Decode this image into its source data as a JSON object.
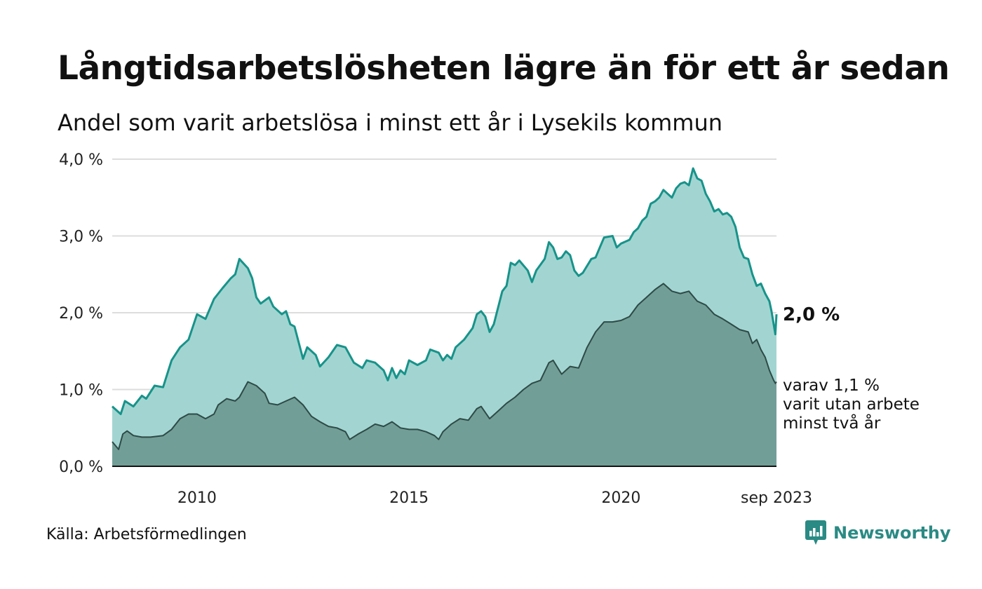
{
  "header": {
    "title": "Långtidsarbetslösheten lägre än för ett år sedan",
    "subtitle": "Andel som varit arbetslösa i minst ett år i Lysekils kommun"
  },
  "footer": {
    "source": "Källa: Arbetsförmedlingen",
    "brand": "Newsworthy"
  },
  "colors": {
    "main_line": "#17938a",
    "main_fill": "#a2d5d1",
    "sub_line": "#2e4a46",
    "sub_fill": "#729e98",
    "grid": "#dddddd",
    "brand": "#2a8a84"
  },
  "chart_data": {
    "type": "area",
    "title": "Långtidsarbetslösheten lägre än för ett år sedan",
    "subtitle": "Andel som varit arbetslösa i minst ett år i Lysekils kommun",
    "xlabel": "",
    "ylabel": "",
    "x_start": "2008-01",
    "x_end": "2023-09",
    "x_ticks": [
      {
        "label": "2010",
        "x": 2010.0
      },
      {
        "label": "2015",
        "x": 2015.0
      },
      {
        "label": "2020",
        "x": 2020.0
      },
      {
        "label": "sep 2023",
        "x": 2023.667
      }
    ],
    "y_ticks": [
      "0,0 %",
      "1,0 %",
      "2,0 %",
      "3,0 %",
      "4,0 %"
    ],
    "y_tick_values": [
      0,
      1,
      2,
      3,
      4
    ],
    "ylim": [
      0,
      4
    ],
    "grid": true,
    "series": [
      {
        "name": "Minst ett år",
        "end_label": "2,0 %",
        "points": [
          [
            2008.0,
            0.78
          ],
          [
            2008.2,
            0.68
          ],
          [
            2008.3,
            0.85
          ],
          [
            2008.5,
            0.78
          ],
          [
            2008.7,
            0.92
          ],
          [
            2008.8,
            0.88
          ],
          [
            2009.0,
            1.05
          ],
          [
            2009.2,
            1.03
          ],
          [
            2009.4,
            1.38
          ],
          [
            2009.6,
            1.55
          ],
          [
            2009.8,
            1.65
          ],
          [
            2010.0,
            1.98
          ],
          [
            2010.2,
            1.92
          ],
          [
            2010.4,
            2.18
          ],
          [
            2010.6,
            2.32
          ],
          [
            2010.8,
            2.45
          ],
          [
            2010.9,
            2.5
          ],
          [
            2011.0,
            2.7
          ],
          [
            2011.2,
            2.58
          ],
          [
            2011.3,
            2.45
          ],
          [
            2011.4,
            2.2
          ],
          [
            2011.5,
            2.12
          ],
          [
            2011.7,
            2.2
          ],
          [
            2011.8,
            2.08
          ],
          [
            2012.0,
            1.98
          ],
          [
            2012.1,
            2.02
          ],
          [
            2012.2,
            1.85
          ],
          [
            2012.3,
            1.82
          ],
          [
            2012.5,
            1.4
          ],
          [
            2012.6,
            1.55
          ],
          [
            2012.8,
            1.45
          ],
          [
            2012.9,
            1.3
          ],
          [
            2013.1,
            1.42
          ],
          [
            2013.3,
            1.58
          ],
          [
            2013.5,
            1.55
          ],
          [
            2013.7,
            1.35
          ],
          [
            2013.9,
            1.28
          ],
          [
            2014.0,
            1.38
          ],
          [
            2014.2,
            1.35
          ],
          [
            2014.4,
            1.25
          ],
          [
            2014.5,
            1.12
          ],
          [
            2014.6,
            1.28
          ],
          [
            2014.7,
            1.15
          ],
          [
            2014.8,
            1.25
          ],
          [
            2014.9,
            1.2
          ],
          [
            2015.0,
            1.38
          ],
          [
            2015.2,
            1.32
          ],
          [
            2015.4,
            1.38
          ],
          [
            2015.5,
            1.52
          ],
          [
            2015.7,
            1.48
          ],
          [
            2015.8,
            1.38
          ],
          [
            2015.9,
            1.45
          ],
          [
            2016.0,
            1.4
          ],
          [
            2016.1,
            1.55
          ],
          [
            2016.3,
            1.65
          ],
          [
            2016.5,
            1.8
          ],
          [
            2016.6,
            1.98
          ],
          [
            2016.7,
            2.02
          ],
          [
            2016.8,
            1.95
          ],
          [
            2016.9,
            1.75
          ],
          [
            2017.0,
            1.85
          ],
          [
            2017.2,
            2.28
          ],
          [
            2017.3,
            2.35
          ],
          [
            2017.4,
            2.65
          ],
          [
            2017.5,
            2.62
          ],
          [
            2017.6,
            2.68
          ],
          [
            2017.8,
            2.55
          ],
          [
            2017.9,
            2.4
          ],
          [
            2018.0,
            2.55
          ],
          [
            2018.2,
            2.7
          ],
          [
            2018.3,
            2.92
          ],
          [
            2018.4,
            2.85
          ],
          [
            2018.5,
            2.7
          ],
          [
            2018.6,
            2.72
          ],
          [
            2018.7,
            2.8
          ],
          [
            2018.8,
            2.75
          ],
          [
            2018.9,
            2.55
          ],
          [
            2019.0,
            2.48
          ],
          [
            2019.1,
            2.52
          ],
          [
            2019.3,
            2.7
          ],
          [
            2019.4,
            2.72
          ],
          [
            2019.5,
            2.85
          ],
          [
            2019.6,
            2.98
          ],
          [
            2019.8,
            3.0
          ],
          [
            2019.9,
            2.85
          ],
          [
            2020.0,
            2.9
          ],
          [
            2020.2,
            2.95
          ],
          [
            2020.3,
            3.05
          ],
          [
            2020.4,
            3.1
          ],
          [
            2020.5,
            3.2
          ],
          [
            2020.6,
            3.25
          ],
          [
            2020.7,
            3.42
          ],
          [
            2020.8,
            3.45
          ],
          [
            2020.9,
            3.5
          ],
          [
            2021.0,
            3.6
          ],
          [
            2021.1,
            3.55
          ],
          [
            2021.2,
            3.5
          ],
          [
            2021.3,
            3.62
          ],
          [
            2021.4,
            3.68
          ],
          [
            2021.5,
            3.7
          ],
          [
            2021.6,
            3.66
          ],
          [
            2021.7,
            3.88
          ],
          [
            2021.8,
            3.75
          ],
          [
            2021.9,
            3.72
          ],
          [
            2022.0,
            3.55
          ],
          [
            2022.1,
            3.45
          ],
          [
            2022.2,
            3.32
          ],
          [
            2022.3,
            3.35
          ],
          [
            2022.4,
            3.28
          ],
          [
            2022.5,
            3.3
          ],
          [
            2022.6,
            3.25
          ],
          [
            2022.7,
            3.12
          ],
          [
            2022.8,
            2.85
          ],
          [
            2022.9,
            2.72
          ],
          [
            2023.0,
            2.7
          ],
          [
            2023.1,
            2.5
          ],
          [
            2023.2,
            2.35
          ],
          [
            2023.3,
            2.38
          ],
          [
            2023.4,
            2.25
          ],
          [
            2023.5,
            2.15
          ],
          [
            2023.55,
            2.02
          ],
          [
            2023.6,
            1.85
          ],
          [
            2023.64,
            1.72
          ],
          [
            2023.667,
            1.98
          ]
        ]
      },
      {
        "name": "varit utan arbete minst två år",
        "end_label_lines": [
          "varav 1,1 %",
          "varit utan arbete",
          "minst två år"
        ],
        "points": [
          [
            2008.0,
            0.32
          ],
          [
            2008.15,
            0.22
          ],
          [
            2008.25,
            0.42
          ],
          [
            2008.35,
            0.46
          ],
          [
            2008.5,
            0.4
          ],
          [
            2008.7,
            0.38
          ],
          [
            2008.9,
            0.38
          ],
          [
            2009.2,
            0.4
          ],
          [
            2009.4,
            0.48
          ],
          [
            2009.6,
            0.62
          ],
          [
            2009.8,
            0.68
          ],
          [
            2010.0,
            0.68
          ],
          [
            2010.2,
            0.62
          ],
          [
            2010.4,
            0.68
          ],
          [
            2010.5,
            0.8
          ],
          [
            2010.7,
            0.88
          ],
          [
            2010.9,
            0.85
          ],
          [
            2011.0,
            0.9
          ],
          [
            2011.2,
            1.1
          ],
          [
            2011.4,
            1.05
          ],
          [
            2011.6,
            0.95
          ],
          [
            2011.7,
            0.82
          ],
          [
            2011.9,
            0.8
          ],
          [
            2012.1,
            0.85
          ],
          [
            2012.3,
            0.9
          ],
          [
            2012.5,
            0.8
          ],
          [
            2012.7,
            0.65
          ],
          [
            2012.9,
            0.58
          ],
          [
            2013.1,
            0.52
          ],
          [
            2013.3,
            0.5
          ],
          [
            2013.5,
            0.45
          ],
          [
            2013.6,
            0.35
          ],
          [
            2013.8,
            0.42
          ],
          [
            2014.0,
            0.48
          ],
          [
            2014.2,
            0.55
          ],
          [
            2014.4,
            0.52
          ],
          [
            2014.6,
            0.58
          ],
          [
            2014.8,
            0.5
          ],
          [
            2015.0,
            0.48
          ],
          [
            2015.2,
            0.48
          ],
          [
            2015.4,
            0.45
          ],
          [
            2015.6,
            0.4
          ],
          [
            2015.7,
            0.35
          ],
          [
            2015.8,
            0.45
          ],
          [
            2016.0,
            0.55
          ],
          [
            2016.2,
            0.62
          ],
          [
            2016.4,
            0.6
          ],
          [
            2016.6,
            0.75
          ],
          [
            2016.7,
            0.78
          ],
          [
            2016.9,
            0.62
          ],
          [
            2017.1,
            0.72
          ],
          [
            2017.3,
            0.82
          ],
          [
            2017.5,
            0.9
          ],
          [
            2017.7,
            1.0
          ],
          [
            2017.9,
            1.08
          ],
          [
            2018.1,
            1.12
          ],
          [
            2018.3,
            1.35
          ],
          [
            2018.4,
            1.38
          ],
          [
            2018.6,
            1.2
          ],
          [
            2018.8,
            1.3
          ],
          [
            2019.0,
            1.28
          ],
          [
            2019.2,
            1.55
          ],
          [
            2019.4,
            1.75
          ],
          [
            2019.6,
            1.88
          ],
          [
            2019.8,
            1.88
          ],
          [
            2020.0,
            1.9
          ],
          [
            2020.2,
            1.95
          ],
          [
            2020.4,
            2.1
          ],
          [
            2020.6,
            2.2
          ],
          [
            2020.8,
            2.3
          ],
          [
            2021.0,
            2.38
          ],
          [
            2021.2,
            2.28
          ],
          [
            2021.4,
            2.25
          ],
          [
            2021.6,
            2.28
          ],
          [
            2021.8,
            2.15
          ],
          [
            2022.0,
            2.1
          ],
          [
            2022.2,
            1.98
          ],
          [
            2022.4,
            1.92
          ],
          [
            2022.6,
            1.85
          ],
          [
            2022.8,
            1.78
          ],
          [
            2023.0,
            1.75
          ],
          [
            2023.1,
            1.6
          ],
          [
            2023.2,
            1.65
          ],
          [
            2023.3,
            1.52
          ],
          [
            2023.4,
            1.42
          ],
          [
            2023.5,
            1.25
          ],
          [
            2023.6,
            1.12
          ],
          [
            2023.64,
            1.08
          ],
          [
            2023.667,
            1.1
          ]
        ]
      }
    ]
  }
}
